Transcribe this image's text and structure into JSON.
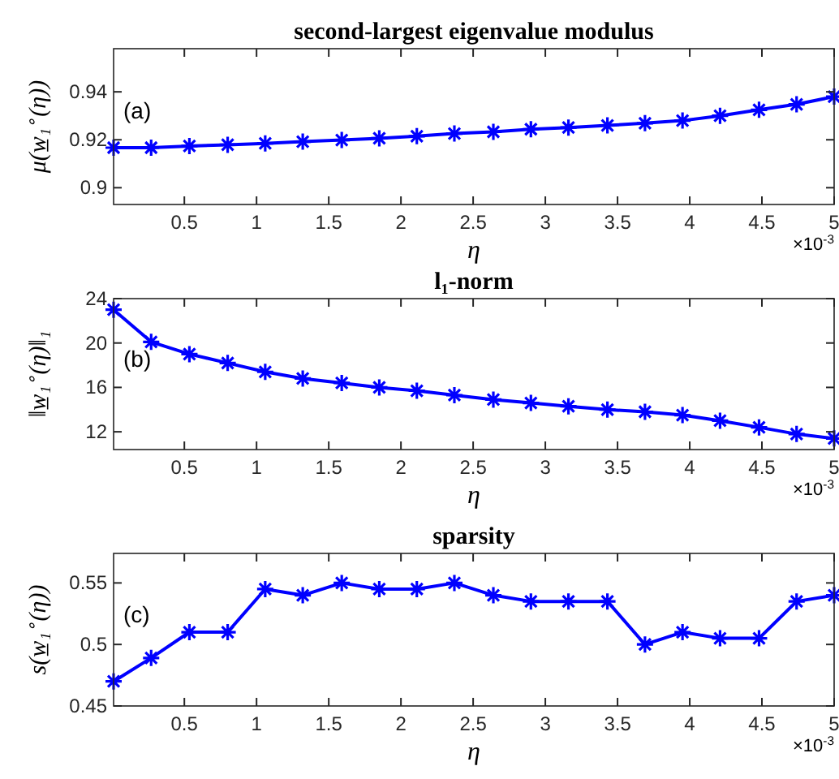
{
  "chart_data": [
    {
      "type": "line",
      "title": "second-largest eigenvalue modulus",
      "xlabel": "η",
      "ylabel": "μ(w̲₁$^{∘}$(η))",
      "annotations": [
        "(a)",
        "×10$^{-3}$"
      ],
      "x": [
        0.01,
        0.27,
        0.535,
        0.8,
        1.06,
        1.32,
        1.59,
        1.85,
        2.11,
        2.37,
        2.64,
        2.9,
        3.16,
        3.43,
        3.69,
        3.95,
        4.21,
        4.48,
        4.74,
        5
      ],
      "xlim": [
        0.01,
        5
      ],
      "xticks": [
        0.5,
        1,
        1.5,
        2,
        2.5,
        3,
        3.5,
        4,
        4.5,
        5
      ],
      "ylim": [
        0.893,
        0.958
      ],
      "yticks": [
        0.9,
        0.92,
        0.94
      ],
      "grid": false,
      "marker": "cross",
      "line_style": "solid",
      "series": [
        {
          "color": "#0000ff",
          "values": [
            0.9167,
            0.9167,
            0.9174,
            0.9179,
            0.9185,
            0.9192,
            0.9199,
            0.9206,
            0.9215,
            0.9226,
            0.9233,
            0.9244,
            0.9251,
            0.926,
            0.9269,
            0.928,
            0.93,
            0.9325,
            0.9348,
            0.938
          ]
        }
      ]
    },
    {
      "type": "line",
      "title": "l₁-norm",
      "xlabel": "η",
      "ylabel": "‖w̲₁$^{∘}$(η)‖₁",
      "annotations": [
        "(b)",
        "×10$^{-3}$"
      ],
      "x": [
        0.01,
        0.27,
        0.535,
        0.8,
        1.06,
        1.32,
        1.59,
        1.85,
        2.11,
        2.37,
        2.64,
        2.9,
        3.16,
        3.43,
        3.69,
        3.95,
        4.21,
        4.48,
        4.74,
        5
      ],
      "xlim": [
        0.01,
        5
      ],
      "xticks": [
        0.5,
        1,
        1.5,
        2,
        2.5,
        3,
        3.5,
        4,
        4.5,
        5
      ],
      "ylim": [
        10.4,
        24
      ],
      "yticks": [
        12,
        16,
        20,
        24
      ],
      "grid": false,
      "marker": "cross",
      "line_style": "solid",
      "series": [
        {
          "color": "#0000ff",
          "values": [
            23.0,
            20.1,
            19.0,
            18.2,
            17.4,
            16.8,
            16.4,
            16.0,
            15.7,
            15.3,
            14.9,
            14.6,
            14.3,
            14.0,
            13.8,
            13.5,
            13.0,
            12.4,
            11.8,
            11.4
          ]
        }
      ]
    },
    {
      "type": "line",
      "title": "sparsity",
      "xlabel": "η",
      "ylabel": "s(w̲₁$^{∘}$(η))",
      "annotations": [
        "(c)",
        "×10$^{-3}$"
      ],
      "x": [
        0.01,
        0.27,
        0.535,
        0.8,
        1.06,
        1.32,
        1.59,
        1.85,
        2.11,
        2.37,
        2.64,
        2.9,
        3.16,
        3.43,
        3.69,
        3.95,
        4.21,
        4.48,
        4.74,
        5
      ],
      "xlim": [
        0.01,
        5
      ],
      "xticks": [
        0.5,
        1,
        1.5,
        2,
        2.5,
        3,
        3.5,
        4,
        4.5,
        5
      ],
      "ylim": [
        0.45,
        0.574
      ],
      "yticks": [
        0.45,
        0.5,
        0.55
      ],
      "grid": false,
      "marker": "cross",
      "line_style": "solid",
      "series": [
        {
          "color": "#0000ff",
          "values": [
            0.47,
            0.489,
            0.51,
            0.51,
            0.545,
            0.54,
            0.55,
            0.545,
            0.545,
            0.55,
            0.54,
            0.535,
            0.535,
            0.535,
            0.5,
            0.51,
            0.505,
            0.505,
            0.535,
            0.54
          ]
        }
      ]
    }
  ]
}
